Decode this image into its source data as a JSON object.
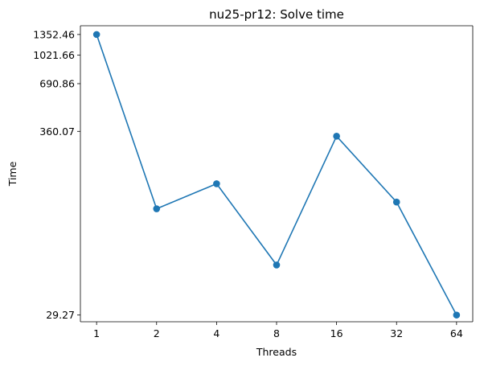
{
  "chart_data": {
    "type": "line",
    "title": "nu25-pr12: Solve time",
    "xlabel": "Threads",
    "ylabel": "Time",
    "x_scale": "log2",
    "y_scale": "log",
    "x": [
      1,
      2,
      4,
      8,
      16,
      32,
      64
    ],
    "x_tick_labels": [
      "1",
      "2",
      "4",
      "8",
      "16",
      "32",
      "64"
    ],
    "y_ticks": [
      1352.46,
      1021.66,
      690.86,
      360.07,
      29.27
    ],
    "y_tick_labels": [
      "1352.46",
      "1021.66",
      "690.86",
      "360.07",
      "29.27"
    ],
    "ylim": [
      26.7,
      1524
    ],
    "series": [
      {
        "values": [
          1352.46,
          125,
          176,
          58,
          337,
          137,
          29.27
        ],
        "color": "#1f77b4",
        "marker": "circle"
      }
    ],
    "grid": false,
    "legend": "none"
  }
}
